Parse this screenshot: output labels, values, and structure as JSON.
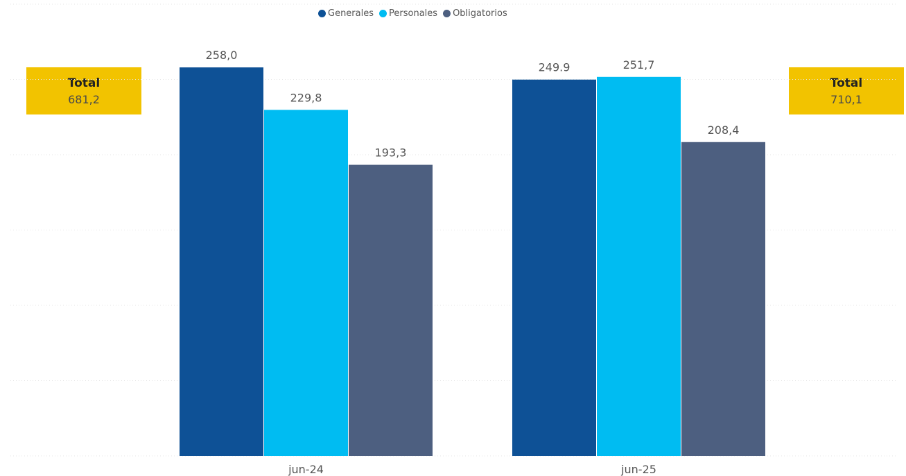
{
  "legend": [
    {
      "name": "Generales",
      "color": "#0e5196"
    },
    {
      "name": "Personales",
      "color": "#00bcf2"
    },
    {
      "name": "Obligatorios",
      "color": "#4d5f80"
    }
  ],
  "totals": [
    {
      "label": "Total",
      "value": "681,2"
    },
    {
      "label": "Total",
      "value": "710,1"
    }
  ],
  "chart_data": {
    "type": "bar",
    "categories": [
      "jun-24",
      "jun-25"
    ],
    "series": [
      {
        "name": "Generales",
        "values": [
          258.0,
          249.9
        ],
        "labels": [
          "258,0",
          "249.9"
        ],
        "color": "#0e5196"
      },
      {
        "name": "Personales",
        "values": [
          229.8,
          251.7
        ],
        "labels": [
          "229,8",
          "251,7"
        ],
        "color": "#00bcf2"
      },
      {
        "name": "Obligatorios",
        "values": [
          193.3,
          208.4
        ],
        "labels": [
          "193,3",
          "208,4"
        ],
        "color": "#4d5f80"
      }
    ],
    "ylim": [
      0,
      300
    ],
    "grid": true,
    "legend_position": "top"
  }
}
